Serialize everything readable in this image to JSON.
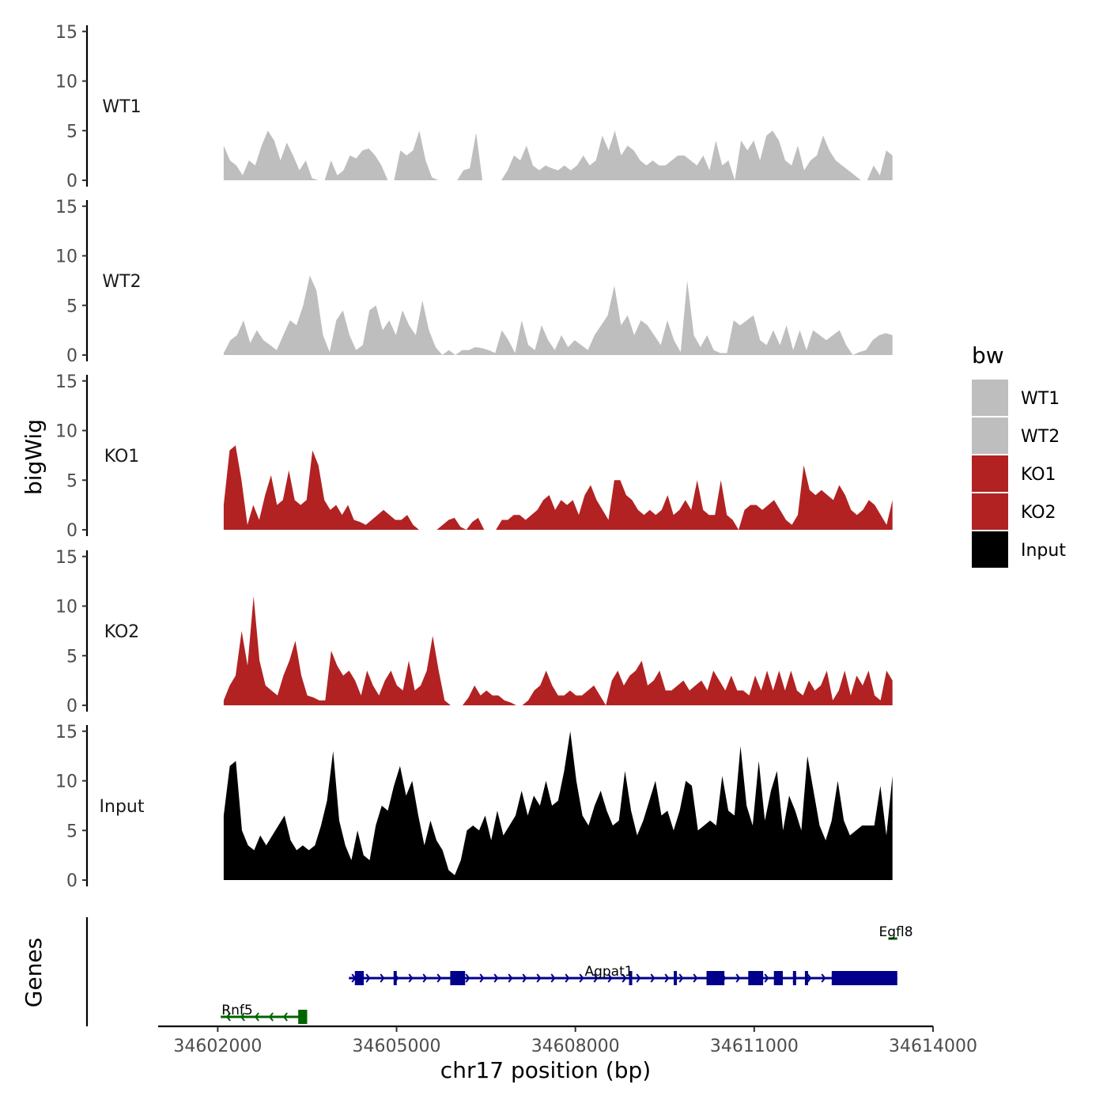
{
  "chart_data": {
    "type": "area",
    "subtype": "genome-browser-coverage",
    "ylabel": "bigWig",
    "xlabel": "chr17 position (bp)",
    "genes_label": "Genes",
    "ylim": [
      0,
      15
    ],
    "yticks": [
      0,
      5,
      10,
      15
    ],
    "xlim": [
      34601000,
      34614000
    ],
    "xticks": [
      34602000,
      34605000,
      34608000,
      34611000,
      34614000
    ],
    "xtick_labels": [
      "34602000",
      "34605000",
      "34608000",
      "34611000",
      "34614000"
    ],
    "data_range": [
      34602100,
      34613320
    ],
    "legend": {
      "title": "bw",
      "position": "right",
      "entries": [
        {
          "label": "WT1",
          "color": "#bebebe"
        },
        {
          "label": "WT2",
          "color": "#bebebe"
        },
        {
          "label": "KO1",
          "color": "#b22222"
        },
        {
          "label": "KO2",
          "color": "#b22222"
        },
        {
          "label": "Input",
          "color": "#000000"
        }
      ]
    },
    "tracks": [
      {
        "name": "WT1",
        "color": "#bebebe",
        "values": [
          3.5,
          2.0,
          1.5,
          0.5,
          2.0,
          1.5,
          3.5,
          5.0,
          4.0,
          2.0,
          3.8,
          2.5,
          1.0,
          2.0,
          0.2,
          0,
          0,
          2.0,
          0.5,
          1.0,
          2.5,
          2.2,
          3.0,
          3.2,
          2.5,
          1.5,
          0,
          0,
          3.0,
          2.5,
          3.0,
          5.0,
          2.0,
          0.3,
          0,
          0,
          0,
          0,
          1.0,
          1.2,
          4.8,
          0,
          0,
          0,
          0,
          1.0,
          2.5,
          2.0,
          3.5,
          1.5,
          1.0,
          1.5,
          1.2,
          1.0,
          1.5,
          1.0,
          1.5,
          2.5,
          1.5,
          2.0,
          4.5,
          3.0,
          5.0,
          2.5,
          3.5,
          3.0,
          2.0,
          1.5,
          2.0,
          1.5,
          1.5,
          2.0,
          2.5,
          2.5,
          2.0,
          1.5,
          2.5,
          1.0,
          4.0,
          1.5,
          2.0,
          0,
          4.0,
          3.0,
          4.0,
          2.0,
          4.5,
          5.0,
          4.0,
          2.0,
          1.5,
          3.5,
          1.0,
          2.0,
          2.5,
          4.5,
          3.0,
          2.0,
          1.5,
          1.0,
          0.5,
          0,
          0,
          1.5,
          0.5,
          3.0,
          2.5
        ]
      },
      {
        "name": "WT2",
        "color": "#bebebe",
        "values": [
          0.2,
          1.5,
          2.0,
          3.5,
          1.2,
          2.5,
          1.5,
          1.0,
          0.5,
          2.0,
          3.5,
          3.0,
          5.0,
          8.0,
          6.5,
          2.0,
          0.3,
          3.5,
          4.5,
          2.0,
          0.5,
          1.0,
          4.5,
          5.0,
          2.5,
          3.5,
          2.0,
          4.5,
          3.0,
          2.0,
          5.5,
          2.5,
          0.8,
          0,
          0.5,
          0,
          0.5,
          0.5,
          0.8,
          0.7,
          0.5,
          0.2,
          2.5,
          1.5,
          0.2,
          3.5,
          1.0,
          0.5,
          3.0,
          1.5,
          0.5,
          2.0,
          0.8,
          1.5,
          1.0,
          0.5,
          2.0,
          3.0,
          4.0,
          7.0,
          3.0,
          4.0,
          2.0,
          3.5,
          3.0,
          2.0,
          1.0,
          3.5,
          1.5,
          0.3,
          7.5,
          2.0,
          0.8,
          2.0,
          0.5,
          0.2,
          0.2,
          3.5,
          3.0,
          3.5,
          4.0,
          1.5,
          1.0,
          2.5,
          1.0,
          3.0,
          0.5,
          2.5,
          0.5,
          2.5,
          2.0,
          1.5,
          2.0,
          2.5,
          1.0,
          0,
          0.3,
          0.5,
          1.5,
          2.0,
          2.2,
          2.0
        ]
      },
      {
        "name": "KO1",
        "color": "#b22222",
        "values": [
          2.5,
          8.0,
          8.5,
          5.0,
          0.5,
          2.5,
          1.0,
          3.5,
          5.5,
          2.5,
          3.0,
          6.0,
          3.0,
          2.5,
          3.0,
          8.0,
          6.5,
          3.0,
          2.0,
          2.5,
          1.5,
          2.5,
          1.0,
          0.8,
          0.5,
          1.0,
          1.5,
          2.0,
          1.5,
          1.0,
          1.0,
          1.5,
          0.5,
          0,
          0,
          0,
          0,
          0.5,
          1.0,
          1.2,
          0.3,
          0,
          0.8,
          1.2,
          0,
          0,
          0,
          1.0,
          1.0,
          1.5,
          1.5,
          1.0,
          1.5,
          2.0,
          3.0,
          3.5,
          2.0,
          3.0,
          2.5,
          3.0,
          1.5,
          3.5,
          4.5,
          3.0,
          2.0,
          1.0,
          5.0,
          5.0,
          3.5,
          3.0,
          2.0,
          1.5,
          2.0,
          1.5,
          2.0,
          3.5,
          1.5,
          2.0,
          3.0,
          2.0,
          5.0,
          2.0,
          1.5,
          1.5,
          5.0,
          1.5,
          1.0,
          0,
          2.0,
          2.5,
          2.5,
          2.0,
          2.5,
          3.0,
          2.0,
          1.0,
          0.5,
          1.5,
          6.5,
          4.0,
          3.5,
          4.0,
          3.5,
          3.0,
          4.5,
          3.5,
          2.0,
          1.5,
          2.0,
          3.0,
          2.5,
          1.5,
          0.5,
          3.0
        ]
      },
      {
        "name": "KO2",
        "color": "#b22222",
        "values": [
          0.5,
          2.0,
          3.0,
          7.5,
          4.0,
          11.0,
          4.5,
          2.0,
          1.5,
          1.0,
          3.0,
          4.5,
          6.5,
          3.0,
          1.0,
          0.8,
          0.5,
          0.5,
          5.5,
          4.0,
          3.0,
          3.5,
          2.5,
          1.0,
          3.5,
          2.0,
          1.0,
          2.5,
          3.5,
          2.0,
          1.5,
          4.5,
          1.5,
          2.0,
          3.5,
          7.0,
          3.5,
          0.5,
          0,
          0,
          0,
          0.8,
          2.0,
          1.0,
          1.5,
          1.0,
          1.0,
          0.5,
          0.3,
          0,
          0,
          0.5,
          1.5,
          2.0,
          3.5,
          2.0,
          1.0,
          1.0,
          1.5,
          1.0,
          1.0,
          1.5,
          2.0,
          1.0,
          0,
          2.5,
          3.5,
          2.0,
          3.0,
          3.5,
          4.5,
          2.0,
          2.5,
          3.5,
          1.5,
          1.5,
          2.0,
          2.5,
          1.5,
          2.0,
          2.5,
          1.5,
          3.5,
          2.5,
          1.5,
          3.0,
          1.5,
          1.5,
          1.0,
          3.0,
          1.5,
          3.5,
          1.5,
          3.5,
          1.5,
          3.5,
          1.5,
          1.0,
          2.5,
          1.5,
          2.0,
          3.5,
          0.5,
          1.5,
          3.5,
          1.0,
          3.0,
          2.0,
          3.5,
          1.0,
          0.5,
          3.5,
          2.5
        ]
      },
      {
        "name": "Input",
        "color": "#000000",
        "values": [
          6.5,
          11.5,
          12.0,
          5.0,
          3.5,
          3.0,
          4.5,
          3.5,
          4.5,
          5.5,
          6.5,
          4.0,
          3.0,
          3.5,
          3.0,
          3.5,
          5.5,
          8.0,
          13.0,
          6.0,
          3.5,
          2.0,
          5.0,
          2.5,
          2.0,
          5.5,
          7.5,
          7.0,
          9.5,
          11.5,
          8.5,
          10.0,
          6.5,
          3.5,
          6.0,
          4.0,
          3.0,
          1.0,
          0.5,
          2.0,
          5.0,
          5.5,
          5.0,
          6.5,
          4.0,
          7.0,
          4.5,
          5.5,
          6.5,
          9.0,
          6.5,
          8.5,
          7.5,
          10.0,
          7.5,
          8.0,
          11.0,
          15.0,
          10.0,
          6.5,
          5.5,
          7.5,
          9.0,
          7.0,
          5.5,
          6.0,
          11.0,
          7.0,
          4.5,
          6.0,
          8.0,
          10.0,
          6.5,
          7.0,
          5.0,
          7.0,
          10.0,
          9.5,
          5.0,
          5.5,
          6.0,
          5.5,
          10.5,
          7.0,
          6.5,
          13.5,
          7.5,
          5.5,
          12.0,
          6.0,
          9.0,
          11.0,
          5.0,
          8.5,
          7.0,
          5.0,
          12.5,
          9.0,
          5.5,
          4.0,
          6.0,
          10.0,
          6.0,
          4.5,
          5.0,
          5.5,
          5.5,
          5.5,
          9.5,
          4.5,
          10.5
        ]
      }
    ],
    "genes": [
      {
        "name": "Rnf5",
        "strand": "-",
        "color": "#006400",
        "start": 34602050,
        "end": 34603500,
        "exons": [
          [
            34603350,
            34603500
          ]
        ]
      },
      {
        "name": "Agpat1",
        "strand": "+",
        "color": "#00008b",
        "start": 34604200,
        "end": 34613400,
        "exons": [
          [
            34604300,
            34604450
          ],
          [
            34604950,
            34605000
          ],
          [
            34605900,
            34606150
          ],
          [
            34608900,
            34608930
          ],
          [
            34609650,
            34609680
          ],
          [
            34610200,
            34610500
          ],
          [
            34610900,
            34611150
          ],
          [
            34611330,
            34611480
          ],
          [
            34611650,
            34611700
          ],
          [
            34611850,
            34611900
          ],
          [
            34612300,
            34613400
          ]
        ]
      },
      {
        "name": "Egfl8",
        "strand": "-",
        "color": "#006400",
        "start": 34613250,
        "end": 34613400,
        "exons": []
      }
    ]
  }
}
